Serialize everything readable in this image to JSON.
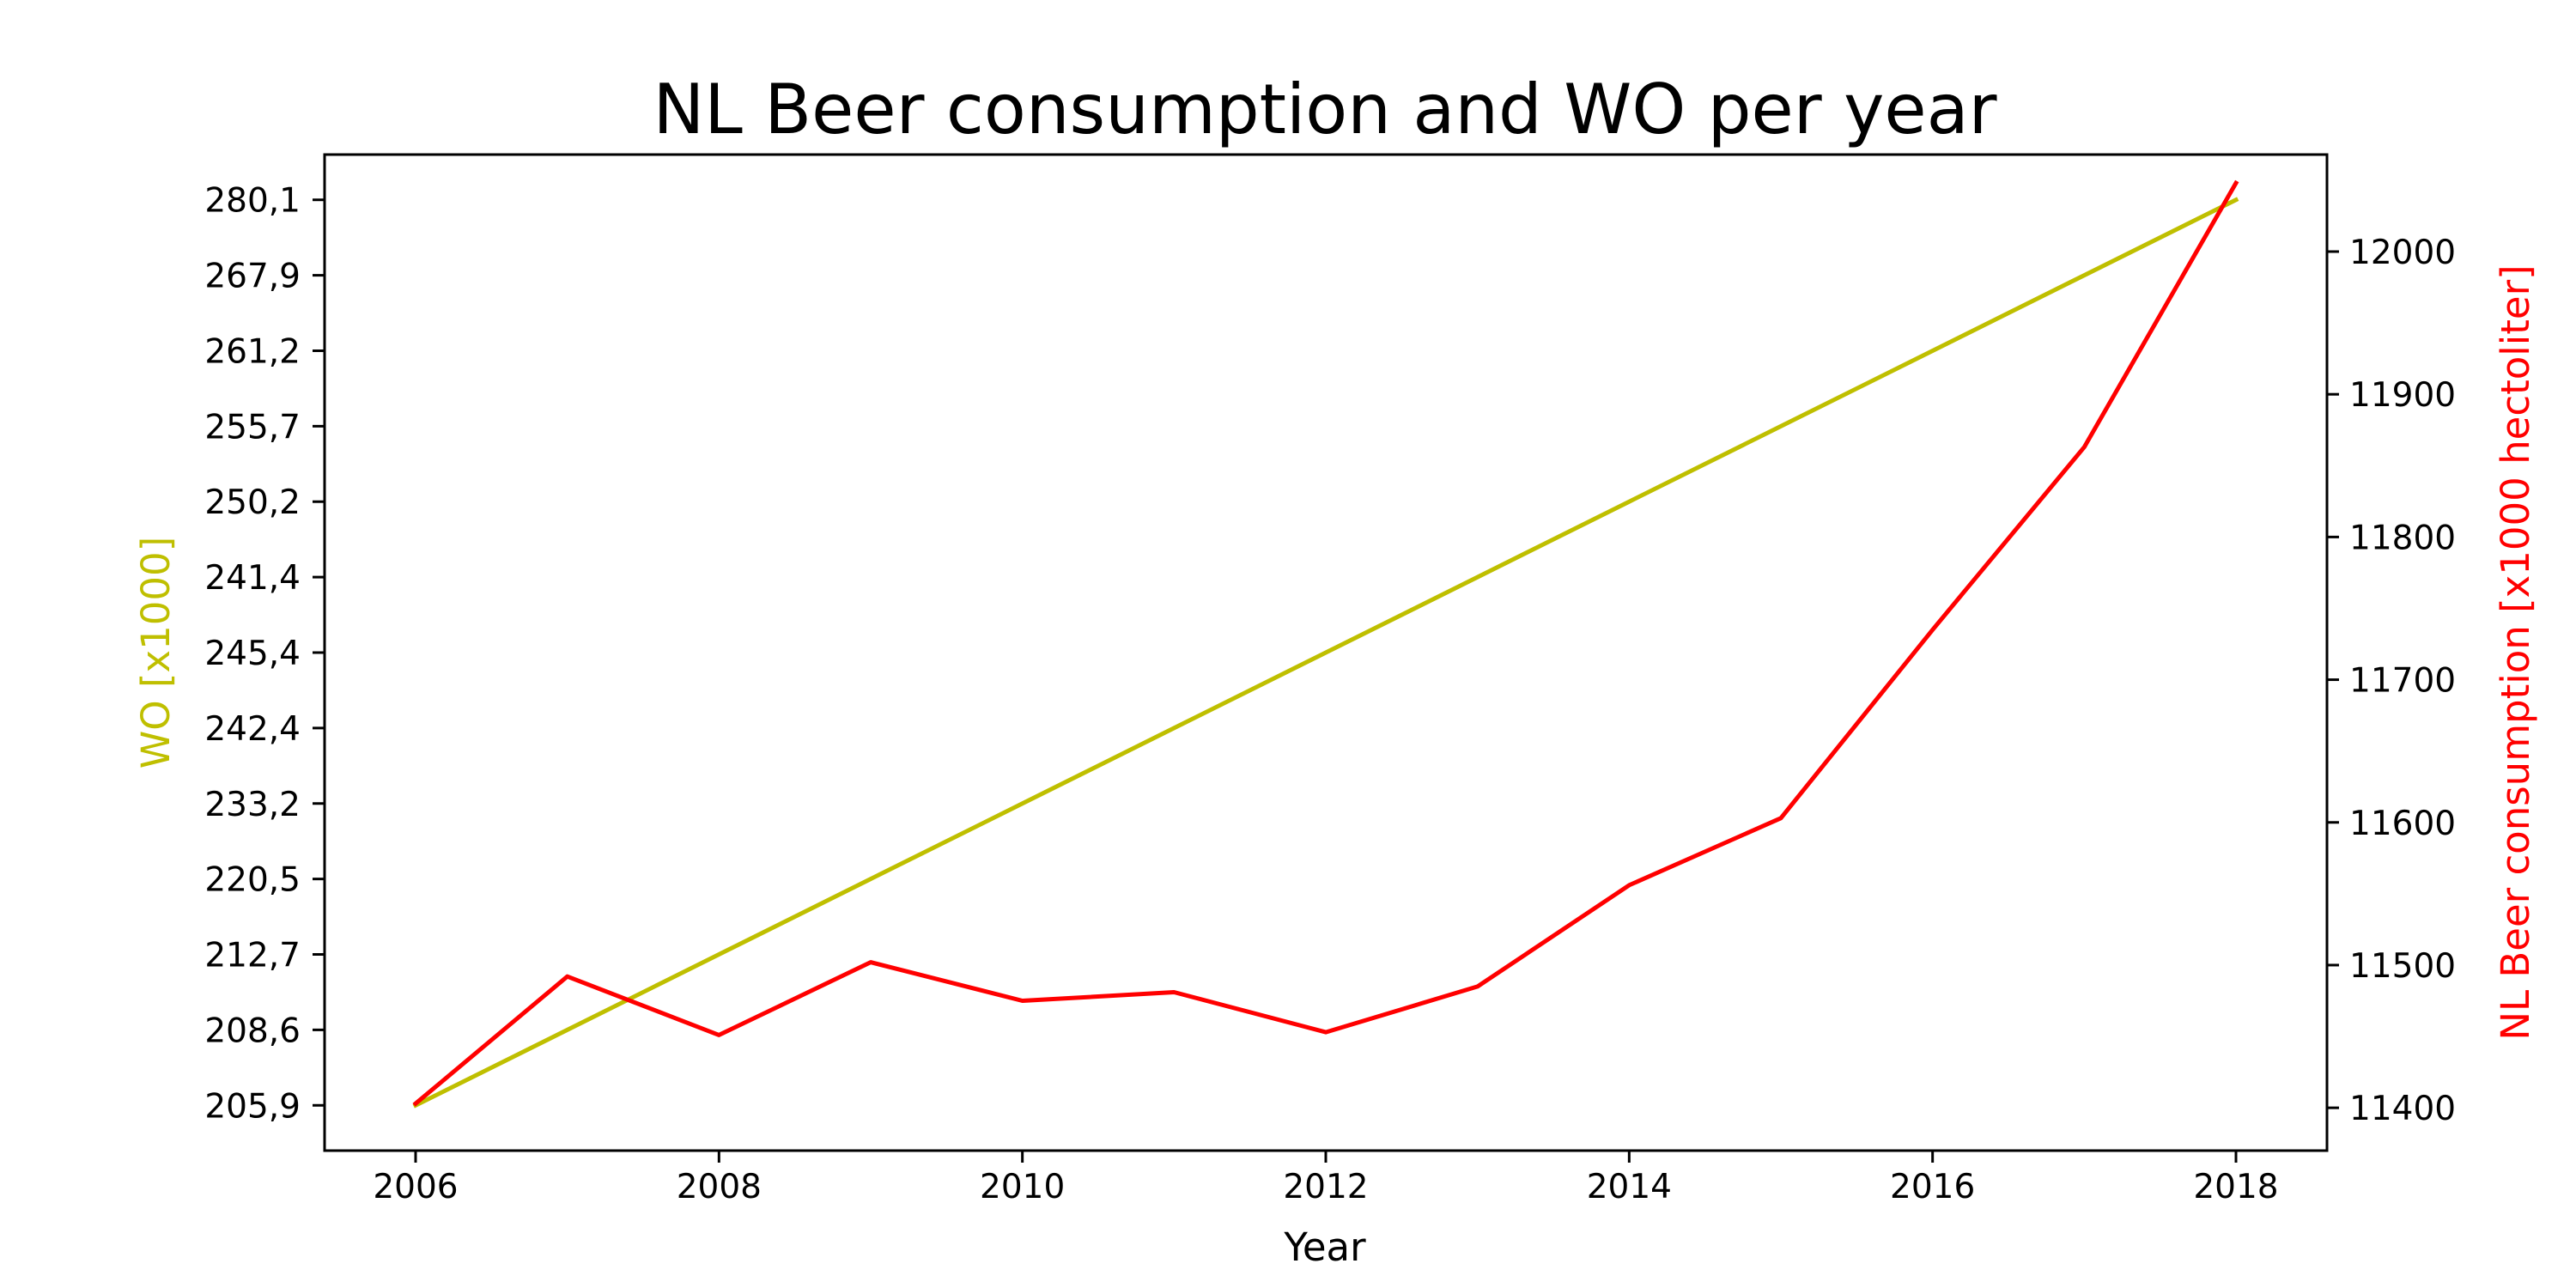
{
  "chart_data": {
    "type": "line",
    "title": "NL Beer consumption and WO per year",
    "xlabel": "Year",
    "ylabel_left": "WO [x1000]",
    "ylabel_right": "NL Beer consumption [x1000 hectoliter]",
    "x": [
      2006,
      2007,
      2008,
      2009,
      2010,
      2011,
      2012,
      2013,
      2014,
      2015,
      2016,
      2017,
      2018
    ],
    "x_ticks": [
      "2006",
      "2008",
      "2010",
      "2012",
      "2014",
      "2016",
      "2018"
    ],
    "xlim": [
      2005.4,
      2018.6
    ],
    "left_y_ticks": [
      "205,9",
      "208,6",
      "212,7",
      "220,5",
      "233,2",
      "242,4",
      "245,4",
      "241,4",
      "250,2",
      "255,7",
      "261,2",
      "267,9",
      "280,1"
    ],
    "left_ylim": [
      -0.6,
      12.6
    ],
    "right_y_ticks": [
      "11400",
      "11500",
      "11600",
      "11700",
      "11800",
      "11900",
      "12000"
    ],
    "right_ylim": [
      11370,
      12068
    ],
    "colors": {
      "wo": "#bfbf00",
      "beer": "#ff0000",
      "axes": "#000000",
      "background": "#ffffff"
    },
    "grid": false,
    "series": [
      {
        "name": "WO [x1000]",
        "axis": "left",
        "color": "#bfbf00",
        "values": [
          "205,9",
          "208,6",
          "212,7",
          "220,5",
          "233,2",
          "242,4",
          "245,4",
          "241,4",
          "250,2",
          "255,7",
          "261,2",
          "267,9",
          "280,1"
        ]
      },
      {
        "name": "NL Beer consumption [x1000 hectoliter]",
        "axis": "right",
        "color": "#ff0000",
        "values": [
          11403,
          11492,
          11451,
          11502,
          11475,
          11481,
          11453,
          11485,
          11556,
          11603,
          11735,
          11863,
          12048
        ]
      }
    ]
  }
}
